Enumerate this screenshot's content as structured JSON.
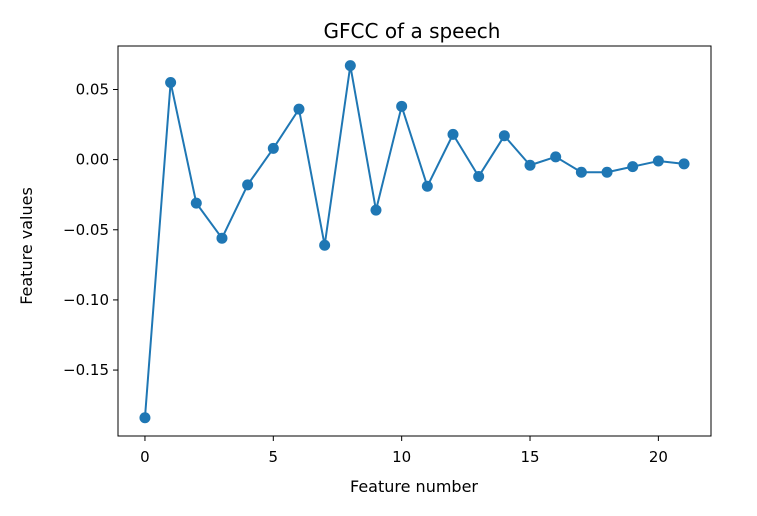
{
  "chart_data": {
    "type": "line",
    "title": "GFCC of a speech",
    "xlabel": "Feature number",
    "ylabel": "Feature values",
    "xlim": [
      -1.05,
      22.05
    ],
    "ylim": [
      -0.197,
      0.081
    ],
    "grid": false,
    "x_ticks": [
      0,
      5,
      10,
      15,
      20
    ],
    "x_tick_labels": [
      "0",
      "5",
      "10",
      "15",
      "20"
    ],
    "y_ticks": [
      0.05,
      0.0,
      -0.05,
      -0.1,
      -0.15
    ],
    "y_tick_labels": [
      "0.05",
      "0.00",
      "−0.05",
      "−0.10",
      "−0.15"
    ],
    "series": [
      {
        "color": "#1f77b4",
        "marker": "circle",
        "x": [
          0,
          1,
          2,
          3,
          4,
          5,
          6,
          7,
          8,
          9,
          10,
          11,
          12,
          13,
          14,
          15,
          16,
          17,
          18,
          19,
          20,
          21
        ],
        "y": [
          -0.184,
          0.055,
          -0.031,
          -0.056,
          -0.018,
          0.008,
          0.036,
          -0.061,
          0.067,
          -0.036,
          0.038,
          -0.019,
          0.018,
          -0.012,
          0.017,
          -0.004,
          0.002,
          -0.009,
          -0.009,
          -0.005,
          -0.001,
          -0.003
        ]
      }
    ]
  }
}
